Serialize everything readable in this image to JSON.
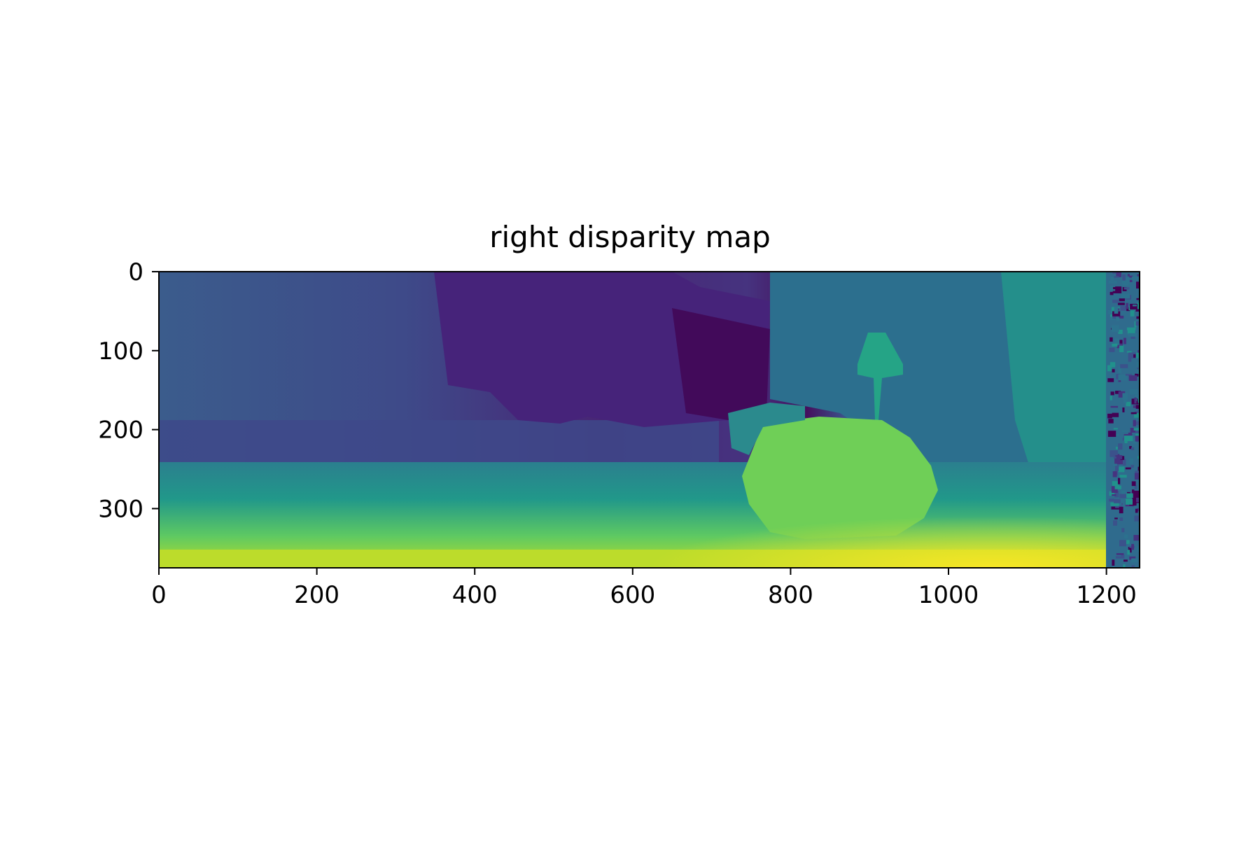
{
  "chart_data": {
    "type": "heatmap",
    "title": "right disparity map",
    "xlabel": "",
    "ylabel": "",
    "xlim": [
      0,
      1242
    ],
    "ylim": [
      375,
      0
    ],
    "xticks": [
      0,
      200,
      400,
      600,
      800,
      1000,
      1200
    ],
    "yticks": [
      0,
      100,
      200,
      300
    ],
    "colormap": "viridis",
    "colorbar": false,
    "grid": false,
    "colors": {
      "dark_purple": "#440154",
      "indigo": "#3b4f8a",
      "teal": "#2c7d8e",
      "green": "#25a186",
      "light_green": "#6ece58",
      "yellow": "#d8e219"
    }
  }
}
